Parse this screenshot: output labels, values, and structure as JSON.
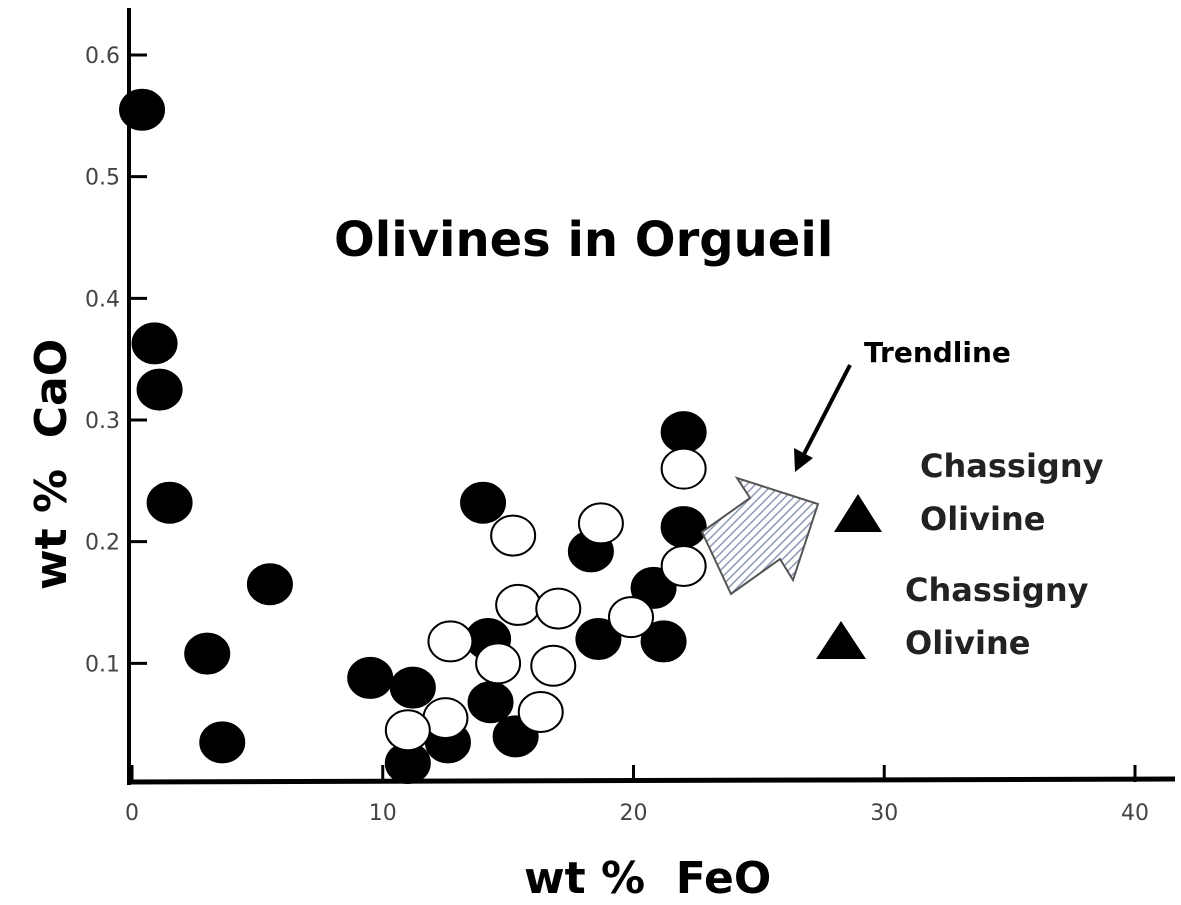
{
  "chart_data": {
    "type": "scatter",
    "title": "Olivines in Orgueil",
    "xlabel": "wt %  FeO",
    "ylabel": "wt %  CaO",
    "xlim": [
      0,
      40
    ],
    "ylim": [
      0,
      0.62
    ],
    "x_ticks": [
      {
        "value": 0,
        "label": "0"
      },
      {
        "value": 10,
        "label": "10"
      },
      {
        "value": 20,
        "label": "20"
      },
      {
        "value": 30,
        "label": "30"
      },
      {
        "value": 40,
        "label": "40"
      }
    ],
    "y_ticks": [
      {
        "value": 0.1,
        "label": "0.1"
      },
      {
        "value": 0.2,
        "label": "0.2"
      },
      {
        "value": 0.3,
        "label": "0.3"
      },
      {
        "value": 0.4,
        "label": "0.4"
      },
      {
        "value": 0.5,
        "label": "0.5"
      },
      {
        "value": 0.6,
        "label": "0.6"
      }
    ],
    "grid": false,
    "series": [
      {
        "marker": "filled-circle",
        "color": "#000000",
        "points": [
          [
            0.4,
            0.555
          ],
          [
            0.9,
            0.363
          ],
          [
            1.1,
            0.325
          ],
          [
            1.5,
            0.232
          ],
          [
            5.5,
            0.165
          ],
          [
            3.0,
            0.108
          ],
          [
            3.6,
            0.035
          ],
          [
            9.5,
            0.088
          ],
          [
            11.2,
            0.08
          ],
          [
            11.0,
            0.018
          ],
          [
            12.6,
            0.035
          ],
          [
            14.0,
            0.232
          ],
          [
            14.2,
            0.12
          ],
          [
            14.3,
            0.068
          ],
          [
            15.3,
            0.04
          ],
          [
            18.3,
            0.192
          ],
          [
            18.6,
            0.12
          ],
          [
            20.8,
            0.162
          ],
          [
            21.2,
            0.118
          ],
          [
            22.0,
            0.29
          ],
          [
            22.0,
            0.212
          ]
        ]
      },
      {
        "marker": "open-circle",
        "color": "#000000",
        "points": [
          [
            22.0,
            0.26
          ],
          [
            22.0,
            0.18
          ],
          [
            18.7,
            0.215
          ],
          [
            15.2,
            0.205
          ],
          [
            15.4,
            0.148
          ],
          [
            17.0,
            0.145
          ],
          [
            19.9,
            0.138
          ],
          [
            12.7,
            0.118
          ],
          [
            14.6,
            0.1
          ],
          [
            16.8,
            0.098
          ],
          [
            16.3,
            0.06
          ],
          [
            12.5,
            0.055
          ],
          [
            11.0,
            0.045
          ]
        ]
      }
    ],
    "annotations": {
      "trendline_label": "Trendline",
      "legend_label_line1": "Chassigny",
      "legend_label_line2": "Olivine",
      "legend_marker": "filled-triangle",
      "trend_arrow_color": "#8f99b3"
    }
  }
}
